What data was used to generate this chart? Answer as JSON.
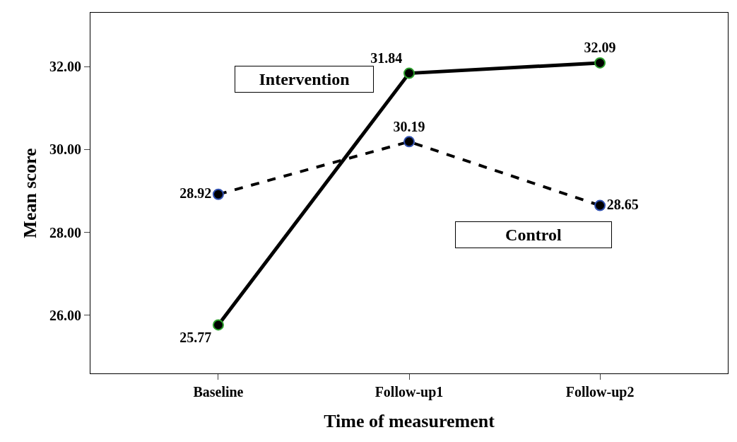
{
  "chart_data": {
    "type": "line",
    "xlabel": "Time of measurement",
    "ylabel": "Mean score",
    "categories": [
      "Baseline",
      "Follow-up1",
      "Follow-up2"
    ],
    "series": [
      {
        "name": "Intervention",
        "color": "#000000",
        "values": [
          25.77,
          31.84,
          32.09
        ],
        "line_style": "solid"
      },
      {
        "name": "Control",
        "color": "#000000",
        "values": [
          28.92,
          30.19,
          28.65
        ],
        "line_style": "dashed"
      }
    ],
    "ylim": [
      24.6,
      33.3
    ],
    "yticks": [
      {
        "value": 26,
        "label": "26.00"
      },
      {
        "value": 28,
        "label": "28.00"
      },
      {
        "value": 30,
        "label": "30.00"
      },
      {
        "value": 32,
        "label": "32.00"
      }
    ],
    "data_labels": true,
    "marker": "circle",
    "legend": false
  }
}
